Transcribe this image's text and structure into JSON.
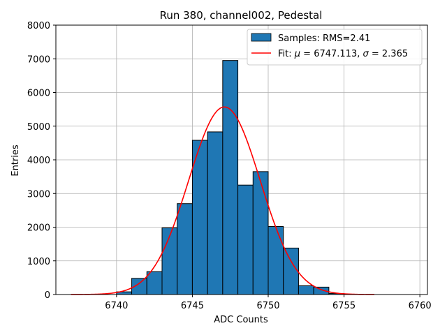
{
  "chart_data": {
    "type": "bar",
    "title": "Run 380, channel002, Pedestal",
    "xlabel": "ADC Counts",
    "ylabel": "Entries",
    "xlim": [
      6736,
      6760.5
    ],
    "ylim": [
      0,
      8000
    ],
    "xticks": [
      6740,
      6745,
      6750,
      6755,
      6760
    ],
    "yticks": [
      0,
      1000,
      2000,
      3000,
      4000,
      5000,
      6000,
      7000,
      8000
    ],
    "grid": true,
    "legend_position": "top-right",
    "histogram": {
      "name": "Samples: RMS=2.41",
      "color": "#1f77b4",
      "bin_width": 1,
      "bins": [
        {
          "left": 6740,
          "count": 80
        },
        {
          "left": 6741,
          "count": 480
        },
        {
          "left": 6742,
          "count": 680
        },
        {
          "left": 6743,
          "count": 1980
        },
        {
          "left": 6744,
          "count": 2700
        },
        {
          "left": 6745,
          "count": 4580
        },
        {
          "left": 6746,
          "count": 4830
        },
        {
          "left": 6747,
          "count": 6950
        },
        {
          "left": 6748,
          "count": 3250
        },
        {
          "left": 6749,
          "count": 3650
        },
        {
          "left": 6750,
          "count": 2020
        },
        {
          "left": 6751,
          "count": 1380
        },
        {
          "left": 6752,
          "count": 260
        },
        {
          "left": 6753,
          "count": 220
        },
        {
          "left": 6754,
          "count": 30
        }
      ]
    },
    "fit": {
      "name_prefix": "Fit: ",
      "mu_symbol": "μ",
      "mu_value": " = 6747.113, ",
      "sigma_symbol": "σ",
      "sigma_value": " = 2.365",
      "color": "#ff0000",
      "mu": 6747.113,
      "sigma": 2.365,
      "amplitude": 5570,
      "x_range": [
        6737,
        6757
      ]
    }
  }
}
